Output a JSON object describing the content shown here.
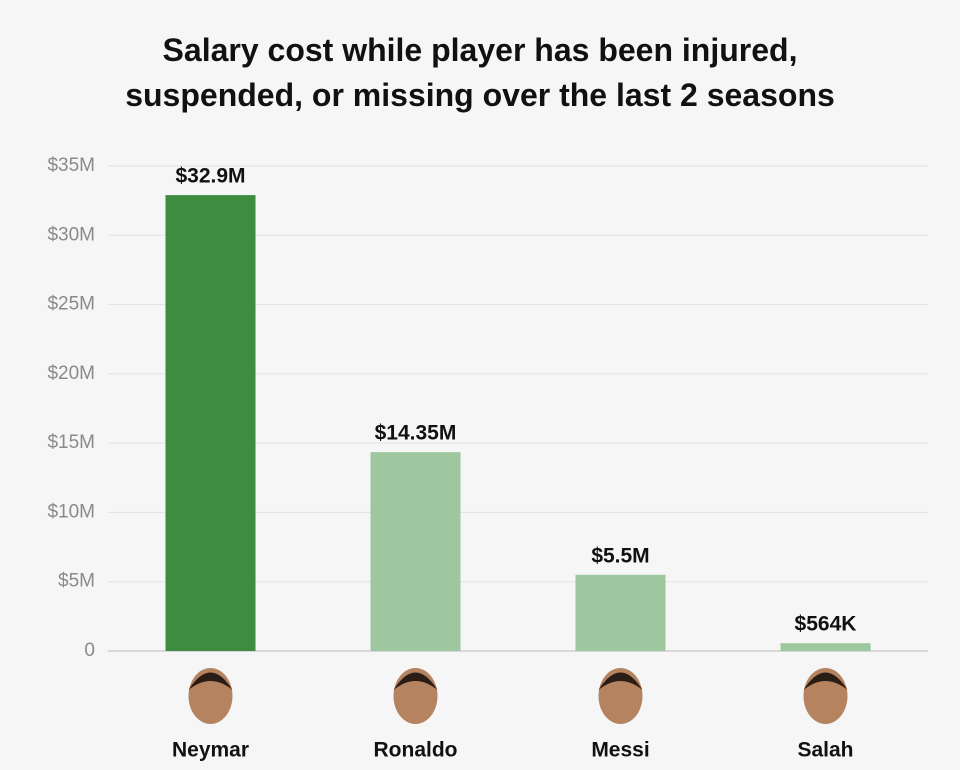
{
  "chart_data": {
    "type": "bar",
    "title": "Salary cost while player has been injured, suspended, or missing over the last 2 seasons",
    "categories": [
      "Neymar",
      "Ronaldo",
      "Messi",
      "Salah"
    ],
    "values": [
      32.9,
      14.35,
      5.5,
      0.564
    ],
    "value_labels": [
      "$32.9M",
      "$14.35M",
      "$5.5M",
      "$564K"
    ],
    "colors": [
      "#3d8c40",
      "#9dc89f",
      "#9dc89f",
      "#9dc89f"
    ],
    "ylim": [
      0,
      35
    ],
    "yticks": [
      0,
      {
        "value": 5,
        "label": "$5M"
      },
      {
        "value": 10,
        "label": "$10M"
      },
      {
        "value": 15,
        "label": "$15M"
      },
      {
        "value": 20,
        "label": "$20M"
      },
      {
        "value": 25,
        "label": "$25M"
      },
      {
        "value": 30,
        "label": "$30M"
      },
      {
        "value": 35,
        "label": "$35M"
      }
    ],
    "grid": true
  }
}
